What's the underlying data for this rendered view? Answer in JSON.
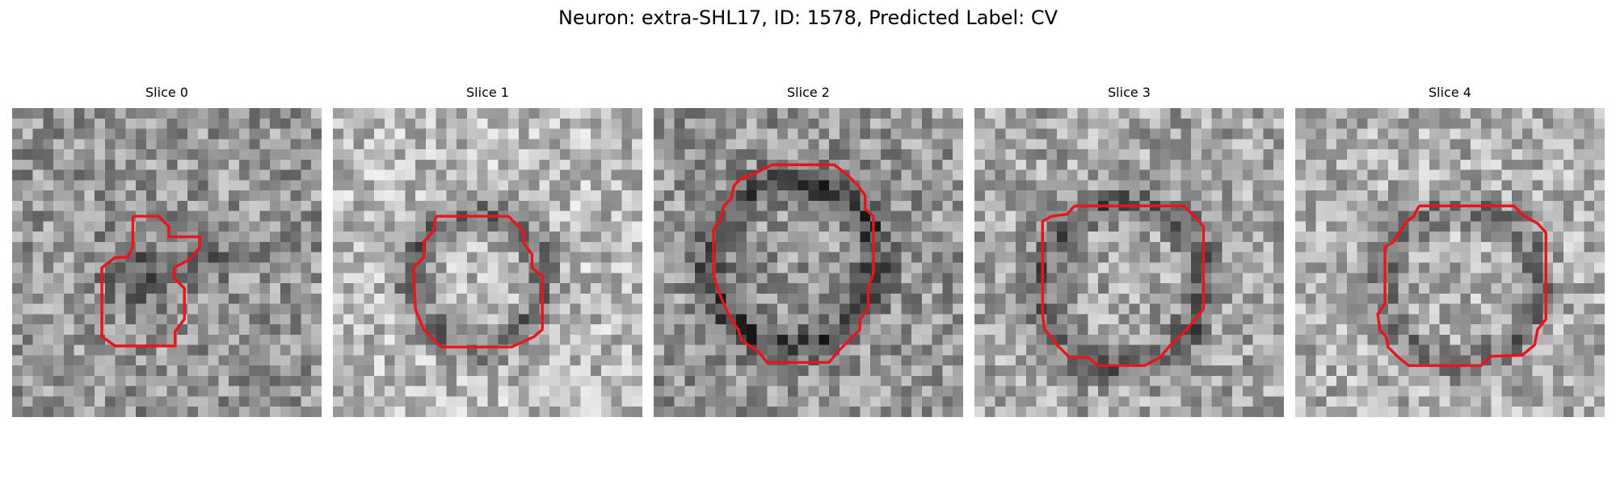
{
  "figure": {
    "title": "Neuron: extra-SHL17, ID: 1578, Predicted Label: CV"
  },
  "colors": {
    "contour": "#e8161b",
    "background": "#ffffff"
  },
  "slices": [
    {
      "title": "Slice 0",
      "seed": 11,
      "base": 150,
      "ring": "blob",
      "strength": 0.45
    },
    {
      "title": "Slice 1",
      "seed": 23,
      "base": 185,
      "ring": "ring",
      "strength": 0.8
    },
    {
      "title": "Slice 2",
      "seed": 37,
      "base": 150,
      "ring": "ring",
      "strength": 0.9
    },
    {
      "title": "Slice 3",
      "seed": 41,
      "base": 165,
      "ring": "ring",
      "strength": 0.75
    },
    {
      "title": "Slice 4",
      "seed": 53,
      "base": 175,
      "ring": "ring",
      "strength": 0.6
    }
  ]
}
